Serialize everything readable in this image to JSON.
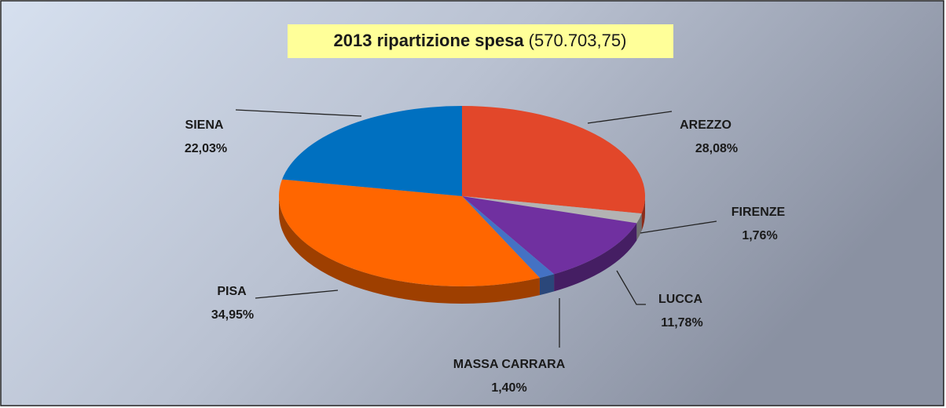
{
  "chart_data": {
    "type": "pie",
    "title": "2013 ripartizione spesa",
    "subtitle": "(570.703,75)",
    "categories": [
      "AREZZO",
      "FIRENZE",
      "LUCCA",
      "MASSA CARRARA",
      "PISA",
      "SIENA"
    ],
    "values": [
      28.08,
      1.76,
      11.78,
      1.4,
      34.95,
      22.03
    ],
    "value_labels": [
      "28,08%",
      "1,76%",
      "11,78%",
      "1,40%",
      "34,95%",
      "22,03%"
    ],
    "colors": [
      "#e2472a",
      "#b3b3b3",
      "#7030a0",
      "#4472c4",
      "#ff6600",
      "#0070c0"
    ]
  }
}
